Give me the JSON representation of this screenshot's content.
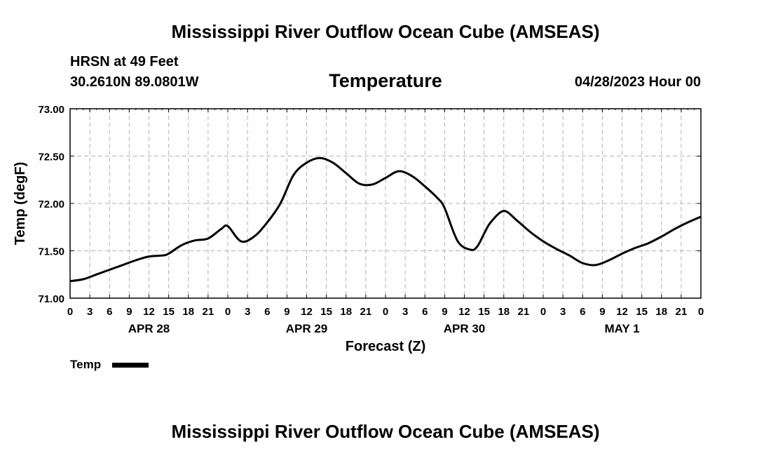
{
  "page": {
    "title": "Mississippi River Outflow Ocean Cube (AMSEAS)",
    "footer_title": "Mississippi River Outflow Ocean Cube (AMSEAS)",
    "station": "HRSN at 49 Feet",
    "coords": "30.2610N  89.0801W",
    "datetime": "04/28/2023 Hour 00"
  },
  "chart_data": {
    "type": "line",
    "title": "Temperature",
    "xlabel": "Forecast (Z)",
    "ylabel": "Temp (degF)",
    "xlim": [
      0,
      96
    ],
    "ylim": [
      71.0,
      73.0
    ],
    "yticks": [
      "71.00",
      "71.50",
      "72.00",
      "72.50",
      "73.00"
    ],
    "ytick_values": [
      71.0,
      71.5,
      72.0,
      72.5,
      73.0
    ],
    "xtick_values": [
      0,
      3,
      6,
      9,
      12,
      15,
      18,
      21,
      24,
      27,
      30,
      33,
      36,
      39,
      42,
      45,
      48,
      51,
      54,
      57,
      60,
      63,
      66,
      69,
      72,
      75,
      78,
      81,
      84,
      87,
      90,
      93,
      96
    ],
    "xtick_labels": [
      "0",
      "3",
      "6",
      "9",
      "12",
      "15",
      "18",
      "21",
      "0",
      "3",
      "6",
      "9",
      "12",
      "15",
      "18",
      "21",
      "0",
      "3",
      "6",
      "9",
      "12",
      "15",
      "18",
      "21",
      "0",
      "3",
      "6",
      "9",
      "12",
      "15",
      "18",
      "21",
      "0"
    ],
    "day_labels": [
      {
        "label": "APR 28",
        "hour": 12
      },
      {
        "label": "APR 29",
        "hour": 36
      },
      {
        "label": "APR 30",
        "hour": 60
      },
      {
        "label": "MAY 1",
        "hour": 84
      }
    ],
    "grid": true,
    "legend_position": "bottom-left",
    "series": [
      {
        "name": "Temp",
        "color": "#000000",
        "x": [
          0,
          2,
          4,
          6,
          8,
          10,
          12,
          14,
          15,
          17,
          19,
          21,
          23,
          24,
          26,
          28,
          30,
          32,
          34,
          36,
          38,
          40,
          42,
          44,
          46,
          48,
          50,
          52,
          54,
          56,
          57,
          59,
          61,
          62,
          63,
          64,
          66,
          68,
          70,
          72,
          74,
          76,
          78,
          80,
          82,
          84,
          86,
          88,
          90,
          92,
          94,
          96
        ],
        "y": [
          71.18,
          71.2,
          71.25,
          71.3,
          71.35,
          71.4,
          71.44,
          71.45,
          71.47,
          71.56,
          71.61,
          71.63,
          71.73,
          71.76,
          71.6,
          71.65,
          71.8,
          72.0,
          72.3,
          72.43,
          72.48,
          72.43,
          72.32,
          72.21,
          72.2,
          72.27,
          72.34,
          72.29,
          72.18,
          72.05,
          71.95,
          71.6,
          71.51,
          71.55,
          71.68,
          71.8,
          71.92,
          71.82,
          71.7,
          71.6,
          71.52,
          71.45,
          71.37,
          71.35,
          71.4,
          71.47,
          71.53,
          71.58,
          71.65,
          71.73,
          71.8,
          71.86
        ]
      }
    ]
  }
}
